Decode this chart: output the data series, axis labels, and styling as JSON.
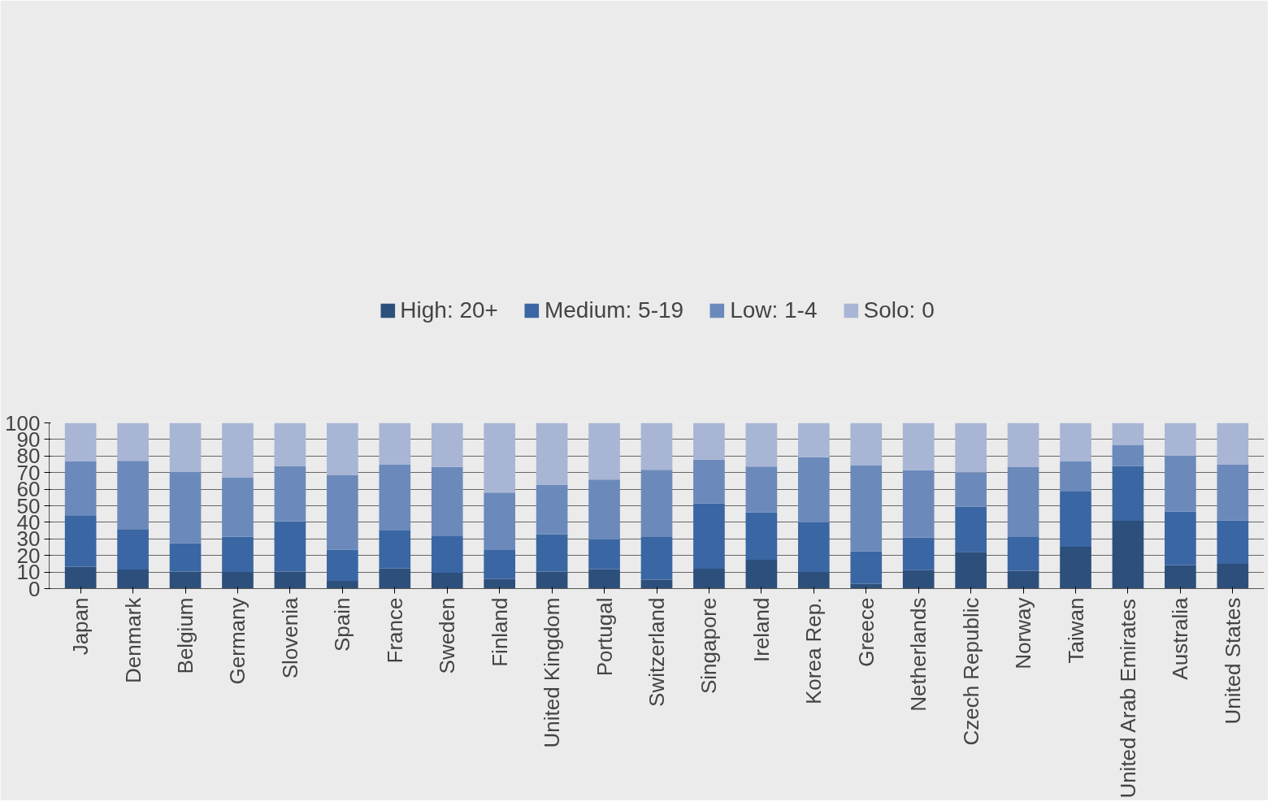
{
  "chart_data": {
    "type": "bar",
    "stacked": true,
    "categories": [
      "Japan",
      "Denmark",
      "Belgium",
      "Germany",
      "Slovenia",
      "Spain",
      "France",
      "Sweden",
      "Finland",
      "United Kingdom",
      "Portugal",
      "Switzerland",
      "Singapore",
      "Ireland",
      "Korea Rep.",
      "Greece",
      "Netherlands",
      "Czech Republic",
      "Norway",
      "Taiwan",
      "United Arab Emirates",
      "Australia",
      "United States"
    ],
    "series": [
      {
        "name": "High: 20+",
        "color": "#2d4f7c",
        "values": [
          13.2,
          11.5,
          10.3,
          10.0,
          10.3,
          4.7,
          12.3,
          9.5,
          5.9,
          10.3,
          11.8,
          5.4,
          12.0,
          17.4,
          10.1,
          3.0,
          11.2,
          22.2,
          10.7,
          25.2,
          40.9,
          14.2,
          14.9
        ]
      },
      {
        "name": "Medium: 5-19",
        "color": "#3a66a3",
        "values": [
          31.0,
          24.4,
          17.2,
          21.3,
          30.3,
          18.8,
          22.7,
          22.1,
          17.4,
          22.5,
          17.9,
          25.7,
          39.5,
          28.5,
          29.9,
          19.6,
          19.6,
          27.3,
          20.4,
          33.7,
          33.0,
          32.3,
          26.3
        ]
      },
      {
        "name": "Low: 1-4",
        "color": "#6b8abb",
        "values": [
          32.5,
          41.2,
          42.9,
          35.9,
          33.3,
          45.1,
          40.0,
          41.8,
          34.7,
          30.0,
          36.1,
          40.6,
          26.3,
          27.7,
          39.3,
          51.9,
          40.6,
          20.6,
          42.2,
          18.1,
          12.9,
          33.9,
          33.8
        ]
      },
      {
        "name": "Solo: 0",
        "color": "#a8b5d4",
        "values": [
          23.3,
          22.9,
          29.6,
          32.8,
          26.1,
          31.4,
          25.0,
          26.6,
          42.0,
          37.2,
          34.2,
          28.3,
          22.2,
          26.4,
          20.7,
          25.5,
          28.6,
          29.9,
          26.7,
          23.0,
          13.2,
          19.6,
          25.0
        ]
      }
    ],
    "ylim": [
      0,
      100
    ],
    "yticks": [
      0,
      10,
      20,
      30,
      40,
      50,
      60,
      70,
      80,
      90,
      100
    ],
    "grid": "y",
    "legend": "top"
  }
}
